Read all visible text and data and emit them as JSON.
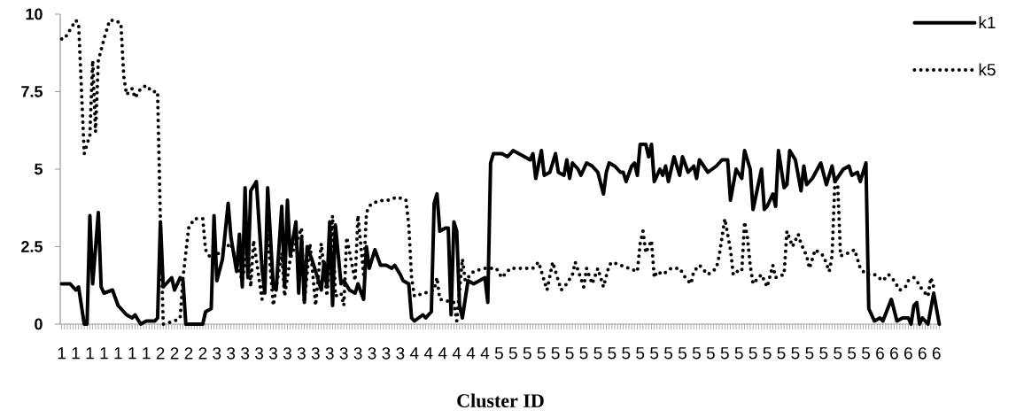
{
  "chart_data": {
    "type": "line",
    "xlabel": "Cluster ID",
    "categories": [
      "1",
      null,
      null,
      null,
      null,
      "1",
      null,
      null,
      null,
      null,
      "1",
      null,
      null,
      null,
      null,
      "1",
      null,
      null,
      null,
      null,
      "1",
      null,
      null,
      null,
      null,
      "1",
      null,
      null,
      null,
      null,
      "1",
      null,
      null,
      null,
      null,
      "2",
      null,
      null,
      null,
      null,
      "2",
      null,
      null,
      null,
      null,
      "2",
      null,
      null,
      null,
      null,
      "2",
      null,
      null,
      null,
      null,
      "3",
      null,
      null,
      null,
      null,
      "3",
      null,
      null,
      null,
      null,
      "3",
      null,
      null,
      null,
      null,
      "3",
      null,
      null,
      null,
      null,
      "3",
      null,
      null,
      null,
      null,
      "3",
      null,
      null,
      null,
      null,
      "3",
      null,
      null,
      null,
      null,
      "3",
      null,
      null,
      null,
      null,
      "3",
      null,
      null,
      null,
      null,
      "3",
      null,
      null,
      null,
      null,
      "3",
      null,
      null,
      null,
      null,
      "3",
      null,
      null,
      null,
      null,
      "3",
      null,
      null,
      null,
      null,
      "3",
      null,
      null,
      null,
      null,
      "4",
      null,
      null,
      null,
      null,
      "4",
      null,
      null,
      null,
      null,
      "4",
      null,
      null,
      null,
      null,
      "4",
      null,
      null,
      null,
      null,
      "4",
      null,
      null,
      null,
      null,
      "4",
      null,
      null,
      null,
      null,
      "5",
      null,
      null,
      null,
      null,
      "5",
      null,
      null,
      null,
      null,
      "5",
      null,
      null,
      null,
      null,
      "5",
      null,
      null,
      null,
      null,
      "5",
      null,
      null,
      null,
      null,
      "5",
      null,
      null,
      null,
      null,
      "5",
      null,
      null,
      null,
      null,
      "5",
      null,
      null,
      null,
      null,
      "5",
      null,
      null,
      null,
      null,
      "5",
      null,
      null,
      null,
      null,
      "5",
      null,
      null,
      null,
      null,
      "5",
      null,
      null,
      null,
      null,
      "5",
      null,
      null,
      null,
      null,
      "5",
      null,
      null,
      null,
      null,
      "5",
      null,
      null,
      null,
      null,
      "5",
      null,
      null,
      null,
      null,
      "5",
      null,
      null,
      null,
      null,
      "5",
      null,
      null,
      null,
      null,
      "5",
      null,
      null,
      null,
      null,
      "5",
      null,
      null,
      null,
      null,
      "5",
      null,
      null,
      null,
      null,
      "5",
      null,
      null,
      null,
      null,
      "5",
      null,
      null,
      null,
      null,
      "5",
      null,
      null,
      null,
      null,
      "5",
      null,
      null,
      null,
      null,
      "5",
      null,
      null,
      null,
      null,
      "5",
      null,
      null,
      null,
      null,
      "6",
      null,
      null,
      null,
      null,
      "6",
      null,
      null,
      null,
      null,
      "6",
      null,
      null,
      null,
      null,
      "6",
      null,
      null,
      null,
      null,
      "6",
      null
    ],
    "ylim": [
      0,
      10
    ],
    "yticks": [
      0,
      2.5,
      5,
      7.5,
      10
    ],
    "legend": "top right",
    "series": [
      {
        "name": "k1",
        "color": "#000000",
        "line_style": "solid",
        "values": [
          1.3,
          null,
          null,
          1.3,
          null,
          1.1,
          1.2,
          null,
          0,
          0,
          3.5,
          1.3,
          null,
          3.6,
          1.2,
          1.0,
          null,
          null,
          1.1,
          null,
          0.6,
          null,
          null,
          0.3,
          null,
          0.2,
          0.3,
          null,
          0,
          null,
          0.1,
          null,
          null,
          0.1,
          0.2,
          3.3,
          1.2,
          null,
          null,
          1.5,
          1.1,
          null,
          1.5,
          1.4,
          0,
          null,
          null,
          null,
          null,
          null,
          0,
          0.4,
          null,
          0.5,
          3.5,
          1.4,
          null,
          2.1,
          null,
          3.9,
          2.8,
          null,
          1.7,
          2.9,
          1.2,
          4.4,
          1.5,
          4.3,
          null,
          4.6,
          null,
          1.8,
          1.0,
          4.4,
          null,
          1.2,
          1.1,
          null,
          3.8,
          1.2,
          4.0,
          2.2,
          null,
          3.3,
          1.0,
          2.8,
          0.7,
          2.5,
          null,
          2.0,
          null,
          1.4,
          1.1,
          2.0,
          1.2,
          3.3,
          0.6,
          3.2,
          null,
          1.3,
          1.4,
          null,
          1.1,
          null,
          1.0,
          1.3,
          null,
          0.8,
          2.5,
          1.8,
          null,
          2.4,
          null,
          1.9,
          null,
          1.9,
          null,
          1.8,
          1.9,
          null,
          1.6,
          1.4,
          null,
          1.3,
          0.2,
          0.1,
          null,
          null,
          0.3,
          0.2,
          null,
          0.4,
          3.9,
          4.2,
          3.0,
          null,
          3.1,
          3.1,
          0.3,
          3.3,
          3.0,
          0.6,
          0.2,
          null,
          1.4,
          null,
          1.3,
          null,
          1.4,
          null,
          1.5,
          0.7,
          5.2,
          5.5,
          null,
          null,
          5.5,
          null,
          5.4,
          null,
          5.6,
          null,
          5.5,
          null,
          5.4,
          null,
          5.3,
          5.5,
          4.7,
          null,
          5.6,
          4.8,
          null,
          4.9,
          null,
          5.5,
          4.9,
          null,
          4.8,
          5.3,
          4.7,
          5.2,
          null,
          5.0,
          4.8,
          null,
          5.2,
          null,
          5.1,
          null,
          4.9,
          null,
          4.2,
          4.9,
          5.2,
          null,
          5.1,
          null,
          4.9,
          4.9,
          4.6,
          null,
          5.1,
          5.2,
          4.8,
          5.8,
          null,
          5.8,
          5.4,
          5.8,
          4.6,
          null,
          5.0,
          4.8,
          5.1,
          4.6,
          null,
          5.4,
          null,
          4.8,
          5.4,
          null,
          4.9,
          null,
          5.1,
          4.7,
          5.3,
          null,
          null,
          4.9,
          null,
          null,
          5.1,
          null,
          5.3,
          null,
          5.3,
          4.0,
          null,
          5.0,
          null,
          4.7,
          5.6,
          null,
          5.0,
          3.7,
          null,
          null,
          5.0,
          3.7,
          3.8,
          null,
          4.2,
          3.8,
          5.6,
          null,
          4.4,
          4.5,
          5.6,
          null,
          5.3,
          null,
          4.3,
          5.1,
          4.5,
          null,
          4.7,
          null,
          null,
          5.2,
          null,
          4.5,
          null,
          5.1,
          4.6,
          null,
          null,
          5.0,
          null,
          5.1,
          4.8,
          null,
          4.9,
          4.6,
          null,
          5.2,
          0.5,
          null,
          0.1,
          null,
          0.2,
          0.1,
          null,
          null,
          0.8,
          null,
          0.1,
          null,
          0.2,
          null,
          0.2,
          0,
          0.6,
          0.7,
          0,
          0.2,
          null,
          0,
          null,
          1.0,
          null,
          0
        ]
      },
      {
        "name": "k5",
        "color": "#000000",
        "line_style": "dotted",
        "values": [
          9.2,
          9.2,
          null,
          9.5,
          null,
          9.8,
          9.7,
          null,
          5.5,
          5.8,
          6.1,
          8.5,
          6.2,
          8.5,
          null,
          9.2,
          null,
          9.8,
          null,
          9.8,
          null,
          9.7,
          8.0,
          7.4,
          null,
          7.6,
          7.3,
          null,
          7.6,
          null,
          7.7,
          null,
          7.5,
          null,
          7.5,
          3.3,
          0,
          null,
          null,
          null,
          0.1,
          null,
          0.2,
          1.5,
          null,
          3.1,
          null,
          3.4,
          null,
          null,
          3.4,
          2.4,
          null,
          2.1,
          null,
          null,
          null,
          null,
          null,
          null,
          2.6,
          null,
          null,
          null,
          1.4,
          null,
          2.6,
          1.2,
          2.7,
          null,
          null,
          0.8,
          null,
          2.9,
          null,
          0.6,
          null,
          null,
          2.3,
          0.9,
          null,
          2.1,
          null,
          null,
          null,
          3.1,
          0.7,
          null,
          2.6,
          null,
          0.6,
          null,
          2.6,
          null,
          0.9,
          null,
          3.5,
          0.9,
          null,
          1.0,
          0.6,
          2.8,
          null,
          null,
          1.4,
          3.5,
          null,
          1.6,
          3.6,
          3.8,
          3.9,
          null,
          null,
          null,
          4.0,
          null,
          4.0,
          null,
          null,
          4.1,
          null,
          null,
          4.0,
          3.2,
          1.5,
          0.9,
          null,
          null,
          null,
          null,
          null,
          null,
          1.1,
          1.5,
          0.8,
          null,
          null,
          null,
          null,
          0.7,
          0.1,
          null,
          2.1,
          1.4,
          null,
          null,
          1.7,
          null,
          null,
          null,
          1.8,
          null,
          1.8,
          null,
          1.8,
          null,
          1.5,
          null,
          null,
          1.8,
          null,
          null,
          1.8,
          null,
          1.8,
          null,
          null,
          1.8,
          null,
          2.0,
          null,
          1.4,
          1.1,
          null,
          2.0,
          null,
          1.4,
          1.1,
          null,
          1.3,
          null,
          1.6,
          2.0,
          null,
          null,
          1.2,
          1.8,
          null,
          1.3,
          null,
          1.8,
          null,
          1.2,
          null,
          1.9,
          2.0,
          null,
          null,
          1.9,
          null,
          null,
          1.8,
          null,
          null,
          1.7,
          2.6,
          3.0,
          2.3,
          null,
          2.7,
          1.5,
          1.7,
          null,
          1.6,
          null,
          null,
          1.8,
          null,
          null,
          1.8,
          null,
          1.5,
          null,
          1.3,
          1.7,
          null,
          1.9,
          null,
          null,
          1.6,
          null,
          null,
          1.8,
          2.2,
          null,
          3.4,
          null,
          2.4,
          1.6,
          1.7,
          null,
          1.7,
          3.3,
          2.8,
          1.9,
          1.3,
          null,
          null,
          1.6,
          null,
          1.2,
          null,
          1.9,
          1.5,
          null,
          null,
          1.6,
          3.0,
          null,
          2.5,
          null,
          2.9,
          2.6,
          null,
          2.2,
          1.8,
          null,
          2.4,
          null,
          null,
          2.2,
          null,
          1.7,
          2.2,
          4.6,
          4.5,
          2.2,
          null,
          null,
          2.3,
          null,
          2.4,
          null,
          1.8,
          null,
          1.6,
          null,
          null,
          1.6,
          null,
          null,
          1.4,
          null,
          1.6,
          null,
          1.4,
          null,
          1.1,
          null,
          1.2,
          1.4,
          null,
          1.5,
          1.4,
          null,
          1.1,
          null,
          0.9,
          1.5,
          1.2,
          null,
          null
        ]
      }
    ]
  }
}
